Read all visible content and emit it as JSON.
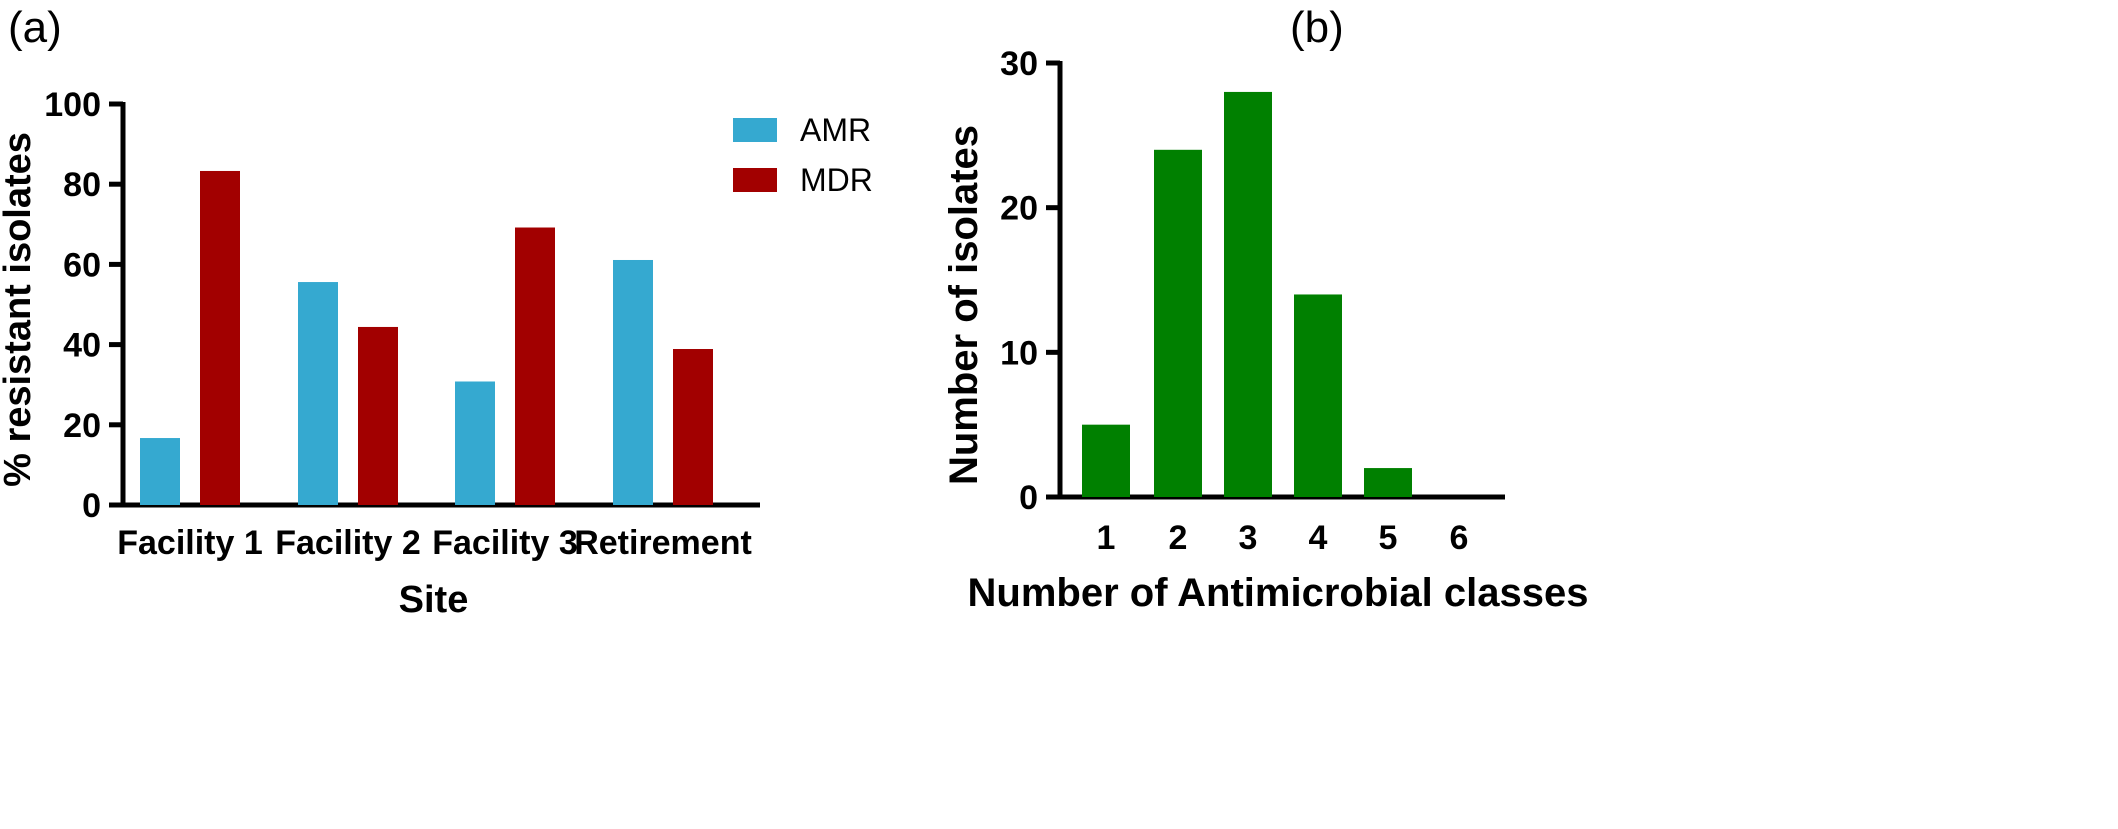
{
  "figure": {
    "panel_a_label": "(a)",
    "panel_b_label": "(b)"
  },
  "chart_data": [
    {
      "type": "bar",
      "title": "",
      "categories": [
        "Facility 1",
        "Facility 2",
        "Facility 3",
        "Retirement"
      ],
      "series": [
        {
          "name": "AMR",
          "color": "#35a9d0",
          "values": [
            16.7,
            55.6,
            30.8,
            61.1
          ]
        },
        {
          "name": "MDR",
          "color": "#a20000",
          "values": [
            83.3,
            44.4,
            69.2,
            38.9
          ]
        }
      ],
      "xlabel": "Site",
      "ylabel": "% resistant isolates",
      "ylim": [
        0,
        100
      ],
      "yticks": [
        0,
        20,
        40,
        60,
        80,
        100
      ],
      "grid": false,
      "legend_position": "top-right"
    },
    {
      "type": "bar",
      "title": "",
      "categories": [
        "1",
        "2",
        "3",
        "4",
        "5",
        "6"
      ],
      "series": [
        {
          "color": "#008000",
          "values": [
            5,
            24,
            28,
            14,
            2,
            0
          ]
        }
      ],
      "xlabel": "Number of Antimicrobial classes",
      "ylabel": "Number of isolates",
      "ylim": [
        0,
        30
      ],
      "yticks": [
        0,
        10,
        20,
        30
      ],
      "grid": false,
      "legend_position": "none"
    }
  ]
}
